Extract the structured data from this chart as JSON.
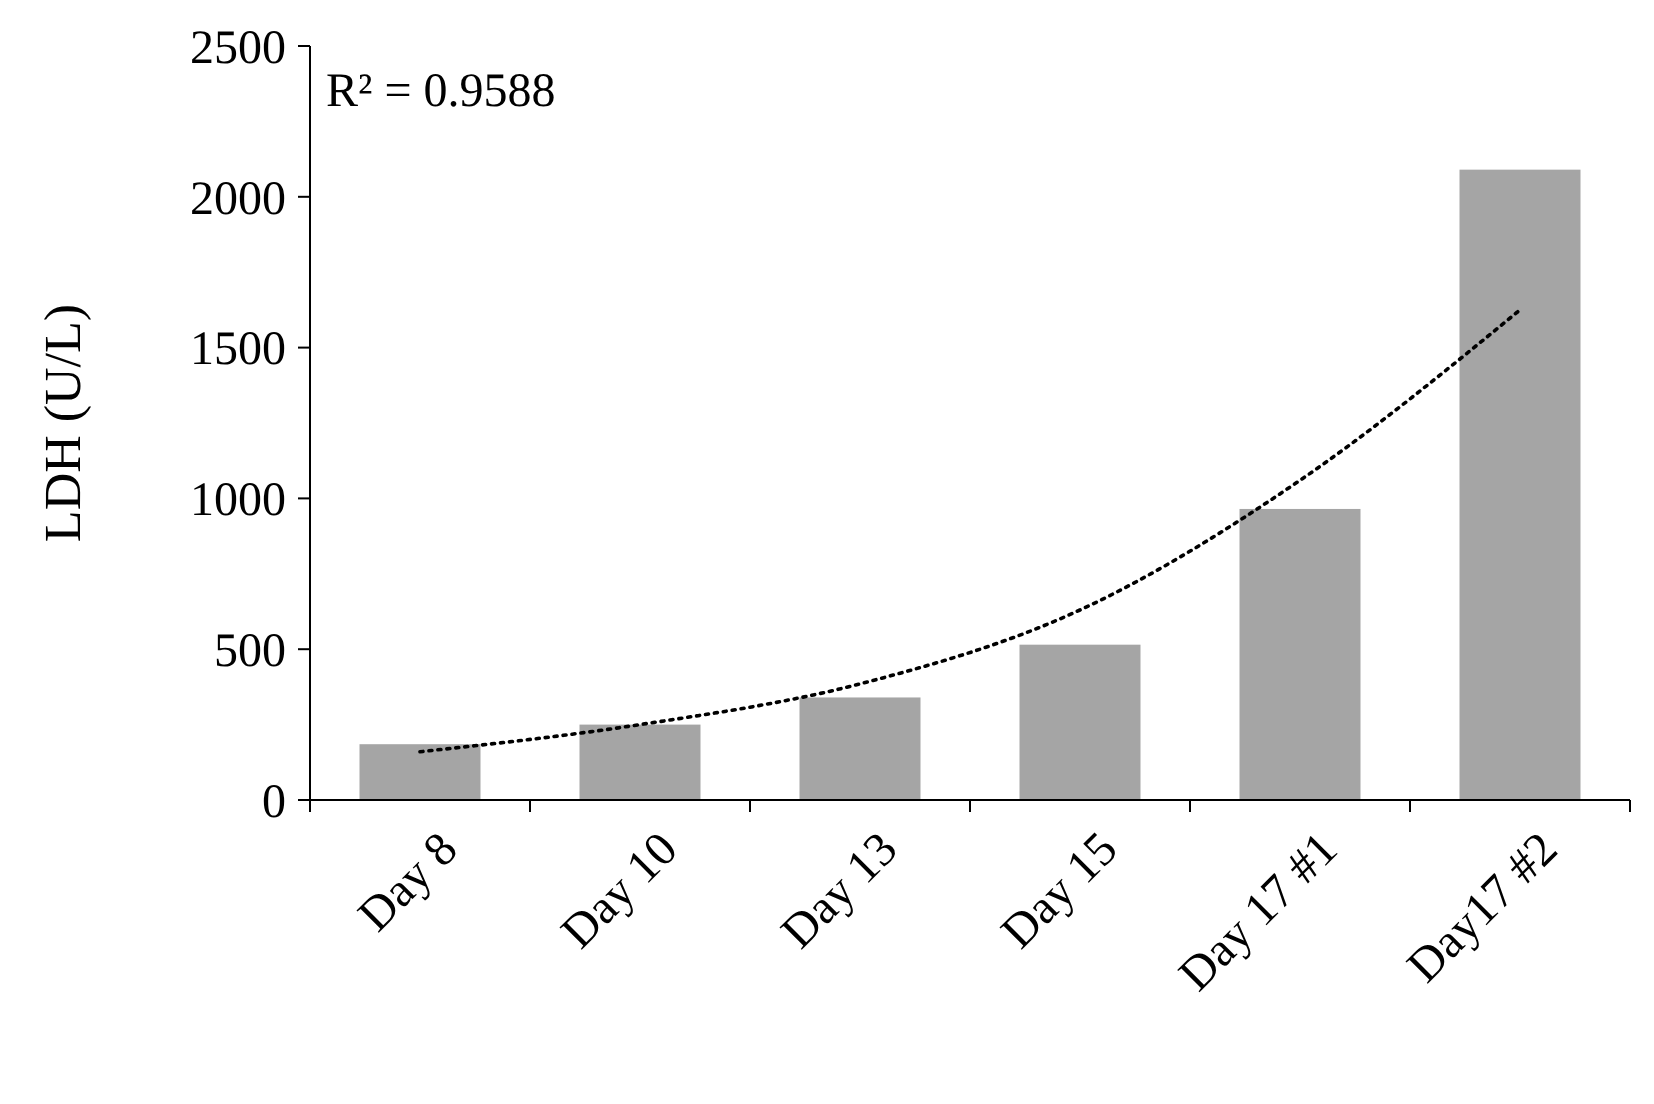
{
  "chart_data": {
    "type": "bar",
    "ylabel": "LDH (U/L)",
    "categories": [
      "Day 8",
      "Day 10",
      "Day 13",
      "Day 15",
      "Day 17 #1",
      "Day17 #2"
    ],
    "series": [
      {
        "color": "#a5a5a5",
        "values": [
          185,
          250,
          340,
          515,
          965,
          2090
        ]
      },
      {
        "type": "line",
        "color": "#000000",
        "line_style": "dotted",
        "values": [
          160,
          250,
          385,
          630,
          1060,
          1625
        ]
      }
    ],
    "ylim": [
      0,
      2500
    ],
    "yticks": [
      0,
      500,
      1000,
      1500,
      2000,
      2500
    ],
    "grid": false,
    "annotations": [
      "R² = 0.9588"
    ]
  }
}
